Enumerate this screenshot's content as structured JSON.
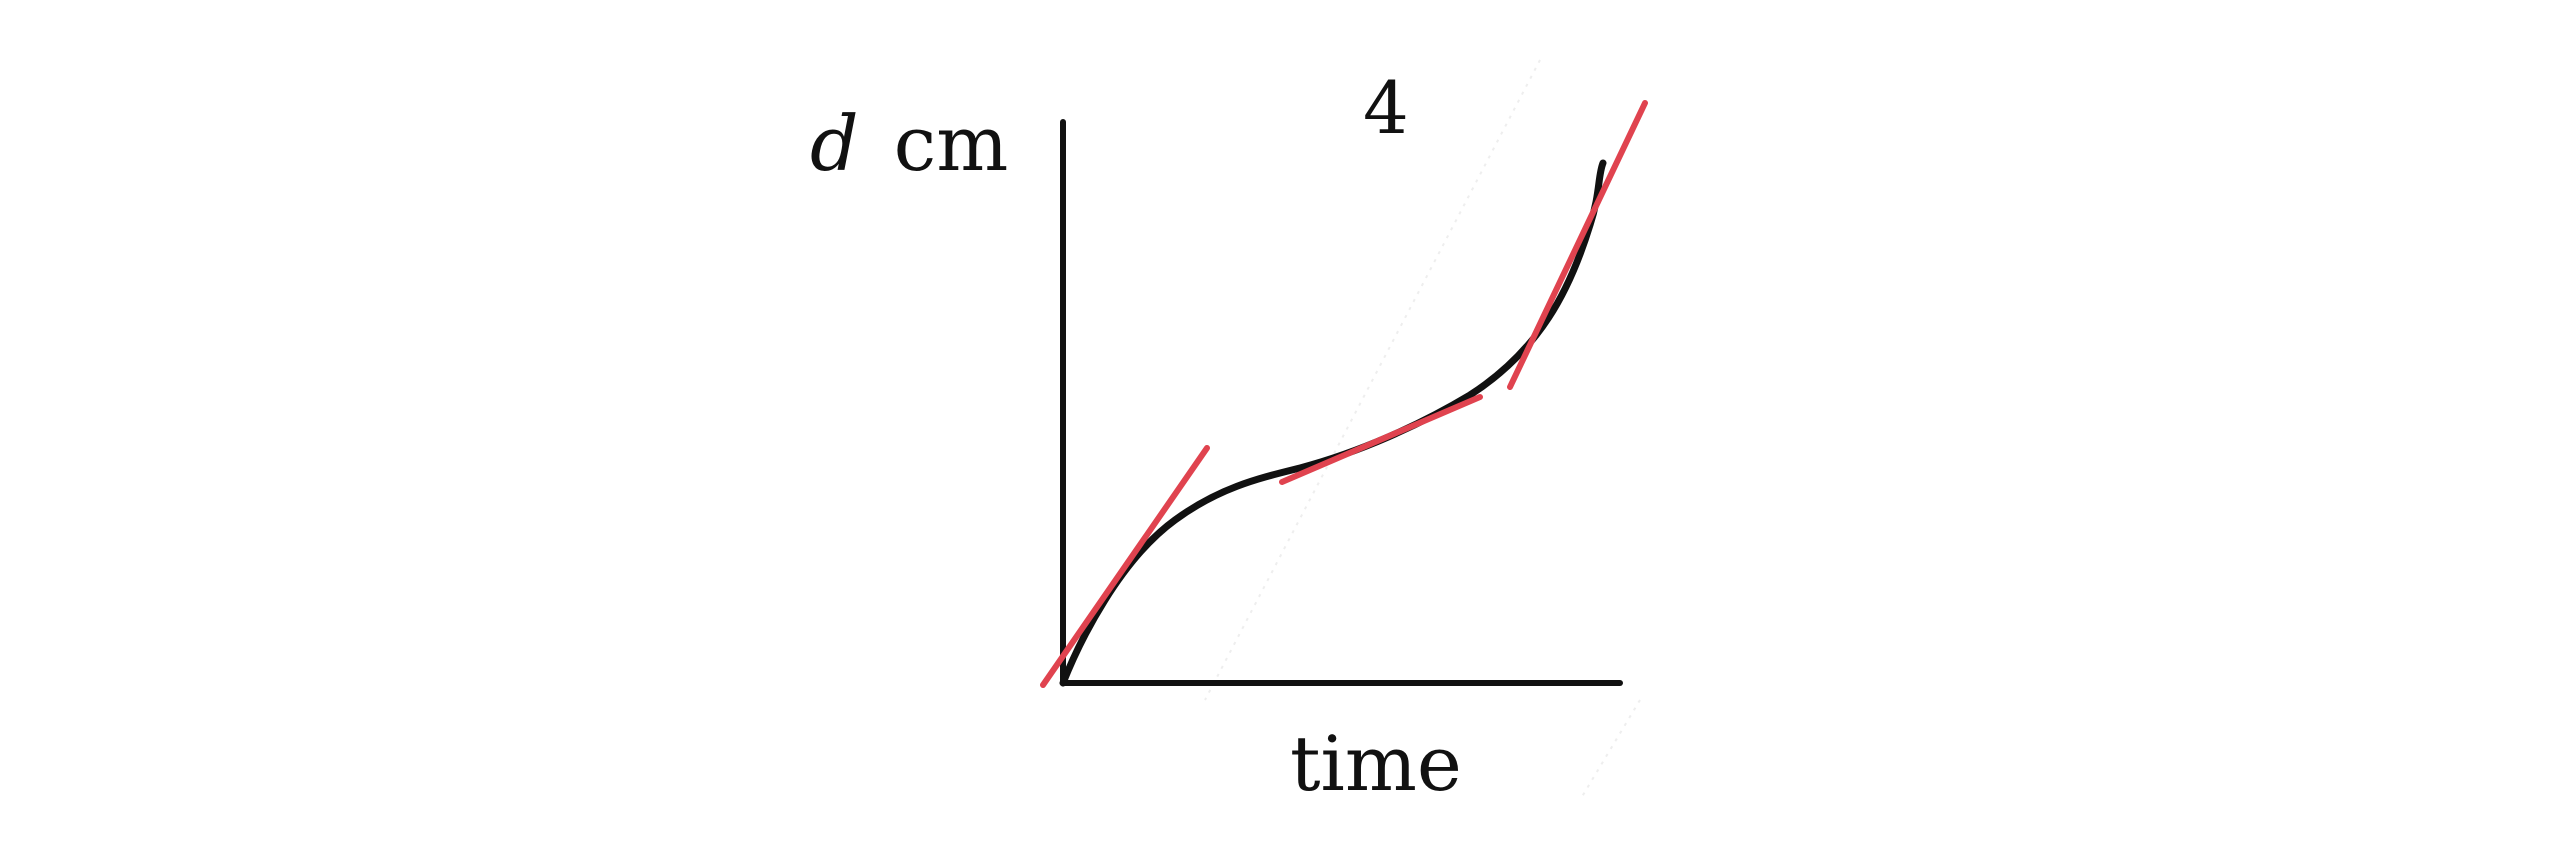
{
  "figure": {
    "number_label": "4",
    "y_axis": {
      "variable": "d",
      "unit": "cm"
    },
    "x_axis": {
      "label": "time"
    }
  },
  "colors": {
    "curve": "#111111",
    "axes": "#111111",
    "tangent": "#e0434f",
    "background": "#ffffff"
  },
  "curve": {
    "description_shape": "increasing cubic-like curve with inflection",
    "tangent_count": 3
  }
}
